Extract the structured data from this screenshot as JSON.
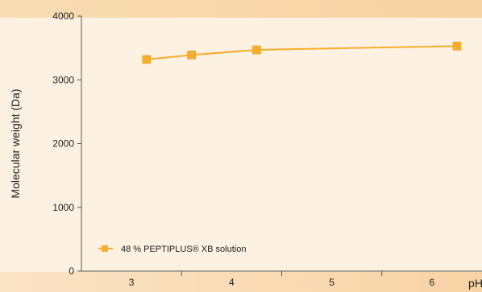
{
  "chart_data": {
    "type": "line",
    "xlabel": "pH",
    "ylabel": "Molecular weight (Da)",
    "xlim": [
      2.5,
      6.5
    ],
    "ylim": [
      0,
      4000
    ],
    "x_ticks": [
      3,
      4,
      5,
      6
    ],
    "x_tick_labels": [
      "3",
      "4",
      "5",
      "6"
    ],
    "y_ticks": [
      0,
      1000,
      2000,
      3000,
      4000
    ],
    "y_tick_labels": [
      "0",
      "1000",
      "2000",
      "3000",
      "4000"
    ],
    "grid": false,
    "legend_position": "bottom-left",
    "series": [
      {
        "name": "48 % PEPTIPLUS® XB solution",
        "color": "#f6ae2d",
        "marker": "square",
        "x": [
          3.15,
          3.6,
          4.25,
          6.25
        ],
        "y": [
          3320,
          3390,
          3470,
          3530
        ]
      }
    ]
  }
}
